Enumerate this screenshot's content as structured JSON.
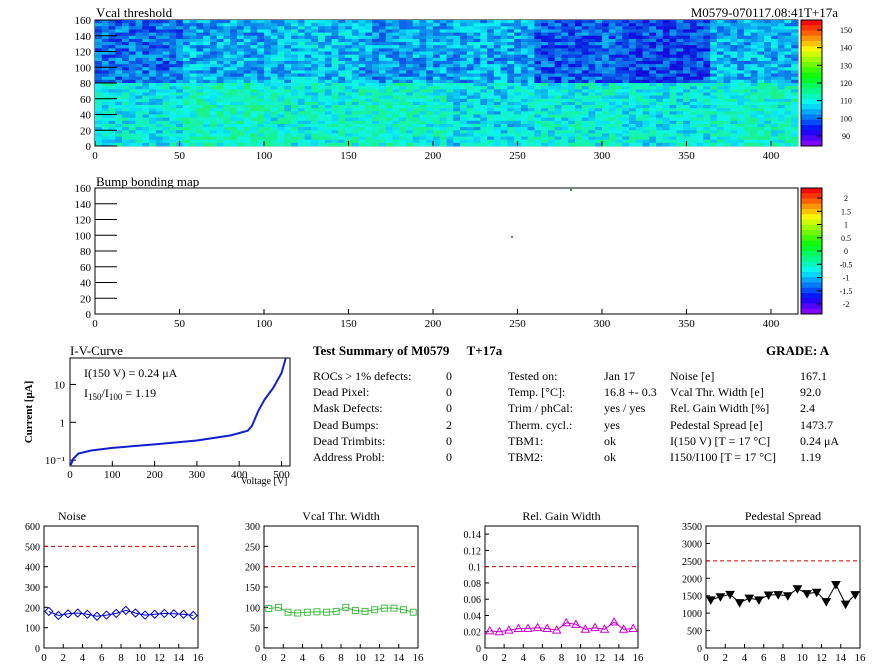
{
  "module_tag": "M0579-070117.08:41T+17a",
  "maps": [
    {
      "title": "Vcal threshold",
      "x_ticks": [
        "0",
        "50",
        "100",
        "150",
        "200",
        "250",
        "300",
        "350",
        "400"
      ],
      "y_ticks": [
        "0",
        "20",
        "40",
        "60",
        "80",
        "100",
        "120",
        "140",
        "160"
      ],
      "palette_labels": [
        "90",
        "100",
        "110",
        "120",
        "130",
        "140",
        "150"
      ]
    },
    {
      "title": "Bump bonding map",
      "x_ticks": [
        "0",
        "50",
        "100",
        "150",
        "200",
        "250",
        "300",
        "350",
        "400"
      ],
      "y_ticks": [
        "0",
        "20",
        "40",
        "60",
        "80",
        "100",
        "120",
        "140",
        "160"
      ],
      "palette_labels": [
        "-2",
        "-1.5",
        "-1",
        "-0.5",
        "0",
        "0.5",
        "1",
        "1.5",
        "2"
      ]
    }
  ],
  "iv": {
    "title": "I-V-Curve",
    "ylabel": "Current [μA]",
    "xlabel": "Voltage [V]",
    "ann1": "I(150 V) = 0.24 μA",
    "ann2_main": "I",
    "ann2_sub1": "150",
    "ann2_sep": "/I",
    "ann2_sub2": "100",
    "ann2_val": "=  1.19",
    "x_ticks": [
      "0",
      "100",
      "200",
      "300",
      "400",
      "500"
    ],
    "y_ticks": [
      "10⁻¹",
      "1",
      "10"
    ]
  },
  "summary": {
    "title": "Test Summary of M0579",
    "temp_tag": "T+17a",
    "grade_label": "GRADE:  A",
    "col1": [
      {
        "label": "ROCs > 1% defects:",
        "value": "0"
      },
      {
        "label": "Dead Pixel:",
        "value": "0"
      },
      {
        "label": "Mask Defects:",
        "value": "0"
      },
      {
        "label": "Dead Bumps:",
        "value": "2"
      },
      {
        "label": "Dead Trimbits:",
        "value": "0"
      },
      {
        "label": "Address Probl:",
        "value": "0"
      }
    ],
    "col2": [
      {
        "label": "Tested on:",
        "value": "Jan 17"
      },
      {
        "label": "Temp. [°C]:",
        "value": "16.8 +- 0.3"
      },
      {
        "label": "Trim / phCal:",
        "value": "yes / yes"
      },
      {
        "label": "Therm. cycl.:",
        "value": "yes"
      },
      {
        "label": "TBM1:",
        "value": "ok"
      },
      {
        "label": "TBM2:",
        "value": "ok"
      }
    ],
    "col3": [
      {
        "label": "Noise [e]",
        "value": "167.1"
      },
      {
        "label": "Vcal Thr. Width [e]",
        "value": "92.0"
      },
      {
        "label": "Rel. Gain Width [%]",
        "value": "2.4"
      },
      {
        "label": "Pedestal Spread [e]",
        "value": "1473.7"
      },
      {
        "label": "I(150 V) [T = 17 °C]",
        "value": "0.24 μA"
      },
      {
        "label": "I150/I100  [T = 17 °C]",
        "value": "1.19"
      }
    ]
  },
  "chart_data": [
    {
      "type": "scatter",
      "title": "Noise",
      "x": [
        0,
        1,
        2,
        3,
        4,
        5,
        6,
        7,
        8,
        9,
        10,
        11,
        12,
        13,
        14,
        15
      ],
      "values": [
        180,
        160,
        168,
        172,
        166,
        156,
        162,
        170,
        185,
        172,
        162,
        166,
        170,
        168,
        166,
        160
      ],
      "xlim": [
        0,
        16
      ],
      "ylim": [
        0,
        600
      ],
      "x_ticks": [
        "0",
        "2",
        "4",
        "6",
        "8",
        "10",
        "12",
        "14",
        "16"
      ],
      "y_ticks": [
        "0",
        "100",
        "200",
        "300",
        "400",
        "500",
        "600"
      ],
      "threshold": 500,
      "color": "#0000cc",
      "marker": "diamond"
    },
    {
      "type": "scatter",
      "title": "Vcal Thr. Width",
      "x": [
        0,
        1,
        2,
        3,
        4,
        5,
        6,
        7,
        8,
        9,
        10,
        11,
        12,
        13,
        14,
        15
      ],
      "values": [
        97,
        100,
        88,
        86,
        88,
        89,
        88,
        90,
        100,
        92,
        90,
        94,
        98,
        98,
        94,
        88
      ],
      "xlim": [
        0,
        16
      ],
      "ylim": [
        0,
        300
      ],
      "x_ticks": [
        "0",
        "2",
        "4",
        "6",
        "8",
        "10",
        "12",
        "14",
        "16"
      ],
      "y_ticks": [
        "0",
        "50",
        "100",
        "150",
        "200",
        "250",
        "300"
      ],
      "threshold": 200,
      "color": "#44bb44",
      "marker": "square"
    },
    {
      "type": "scatter",
      "title": "Rel. Gain Width",
      "x": [
        0,
        1,
        2,
        3,
        4,
        5,
        6,
        7,
        8,
        9,
        10,
        11,
        12,
        13,
        14,
        15
      ],
      "values": [
        0.021,
        0.02,
        0.022,
        0.024,
        0.024,
        0.025,
        0.024,
        0.022,
        0.031,
        0.029,
        0.023,
        0.025,
        0.023,
        0.032,
        0.023,
        0.024
      ],
      "xlim": [
        0,
        16
      ],
      "ylim": [
        0,
        0.15
      ],
      "x_ticks": [
        "0",
        "2",
        "4",
        "6",
        "8",
        "10",
        "12",
        "14",
        "16"
      ],
      "y_ticks": [
        "0",
        "0.02",
        "0.04",
        "0.06",
        "0.08",
        "0.1",
        "0.12",
        "0.14"
      ],
      "threshold": 0.1,
      "color": "#cc00cc",
      "marker": "triangle"
    },
    {
      "type": "scatter",
      "title": "Pedestal Spread",
      "x": [
        0,
        1,
        2,
        3,
        4,
        5,
        6,
        7,
        8,
        9,
        10,
        11,
        12,
        13,
        14,
        15
      ],
      "values": [
        1380,
        1470,
        1540,
        1300,
        1430,
        1380,
        1520,
        1530,
        1500,
        1700,
        1560,
        1600,
        1330,
        1820,
        1260,
        1530
      ],
      "xlim": [
        0,
        16
      ],
      "ylim": [
        0,
        3500
      ],
      "x_ticks": [
        "0",
        "2",
        "4",
        "6",
        "8",
        "10",
        "12",
        "14",
        "16"
      ],
      "y_ticks": [
        "0",
        "500",
        "1000",
        "1500",
        "2000",
        "2500",
        "3000",
        "3500"
      ],
      "threshold": 2500,
      "color": "#000000",
      "marker": "triangle-down"
    }
  ]
}
